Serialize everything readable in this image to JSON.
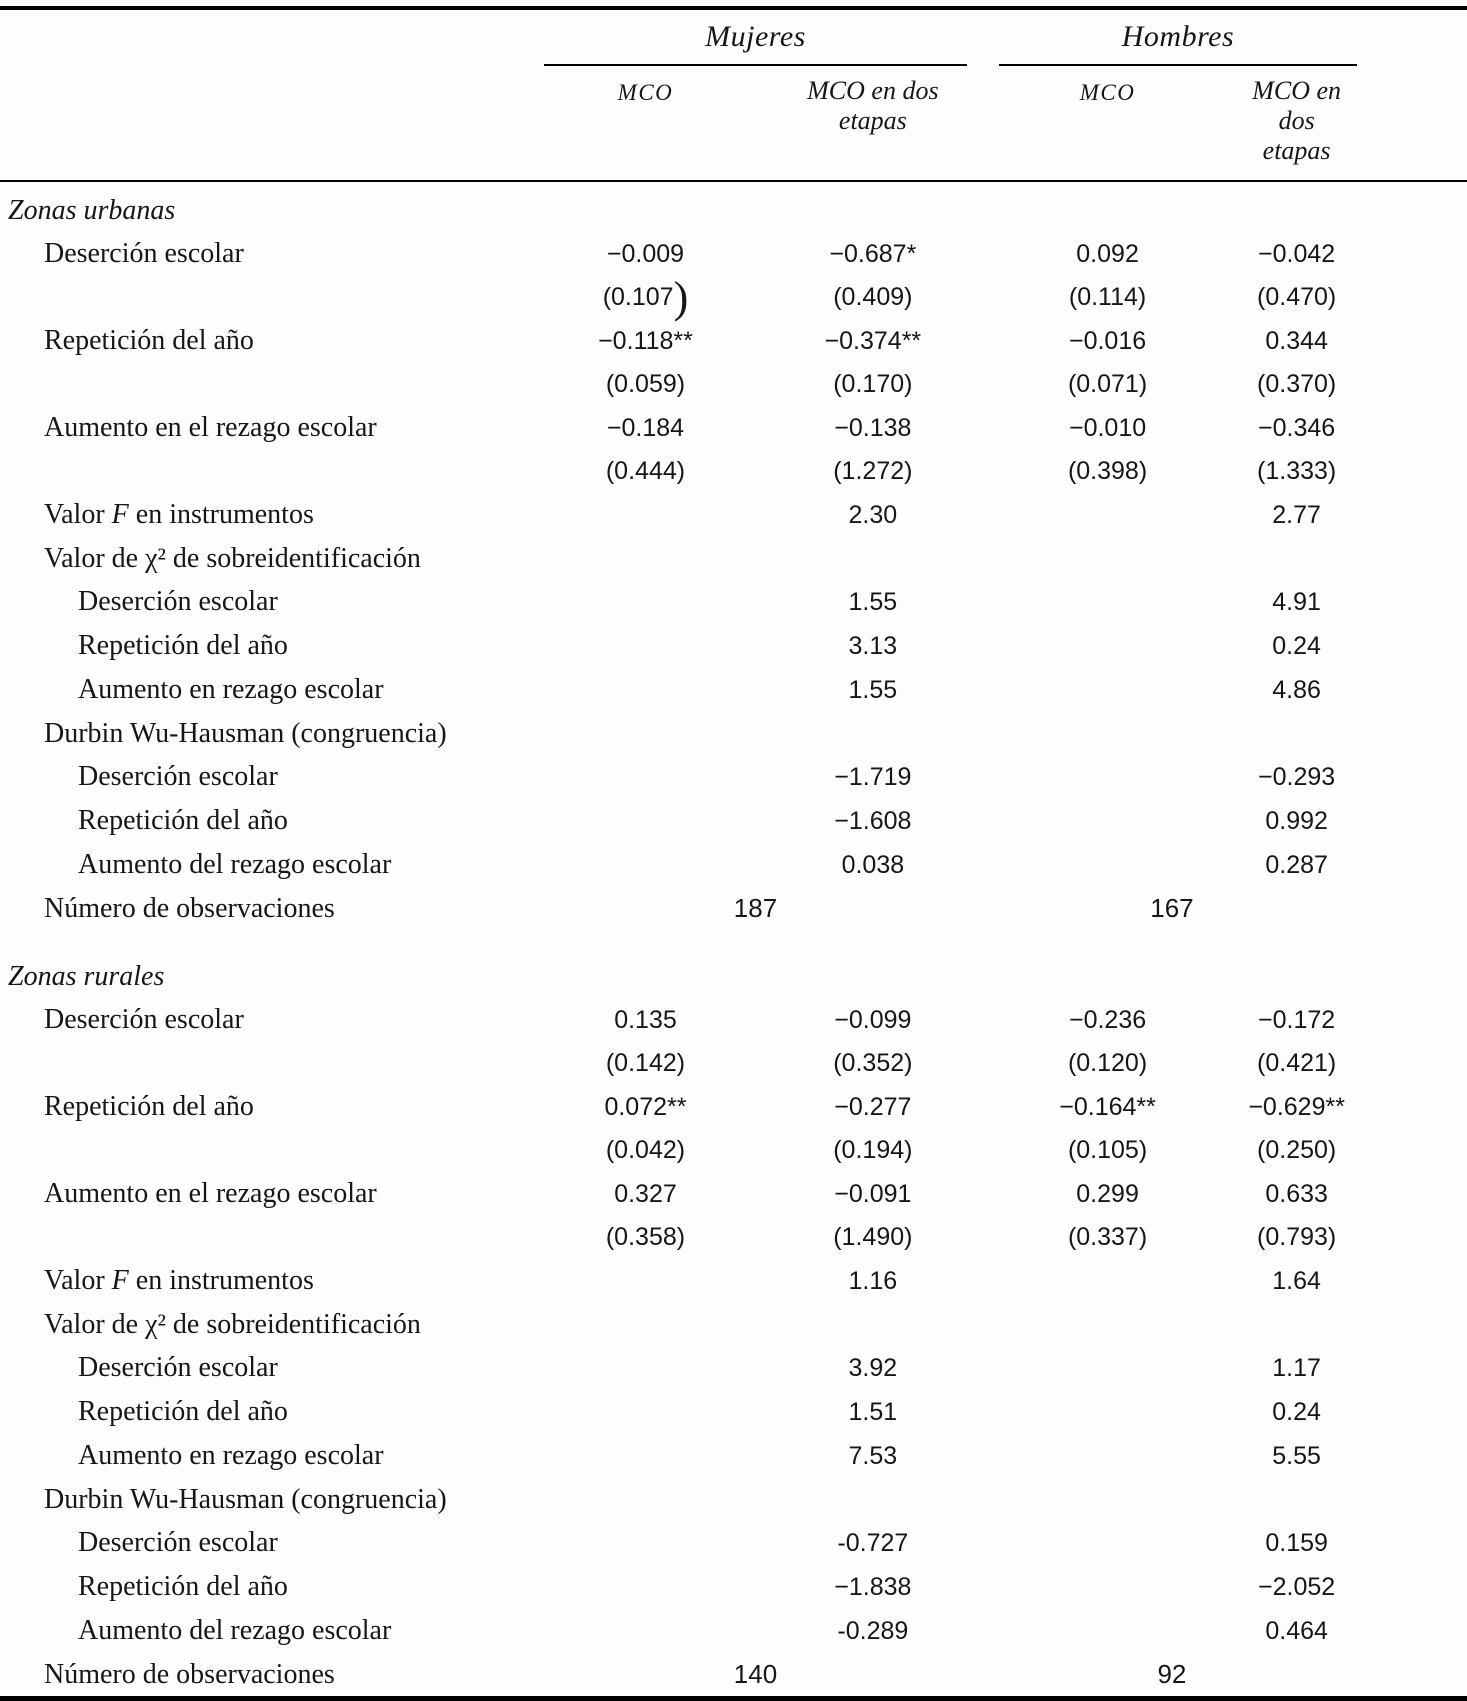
{
  "table": {
    "col_groups": [
      {
        "label": "Mujeres"
      },
      {
        "label": "Hombres"
      }
    ],
    "col_headers": [
      "MCO",
      "MCO en dos\netapas",
      "MCO",
      "MCO en dos\netapas"
    ],
    "sections": [
      {
        "title": "Zonas urbanas",
        "rows": [
          {
            "label": "Deserción escolar",
            "indent": 1,
            "cells": [
              "−0.009",
              "−0.687*",
              "0.092",
              "−0.042"
            ]
          },
          {
            "label": "",
            "indent": 1,
            "se": true,
            "cells": [
              {
                "text": "(0.107",
                "big_paren": ")"
              },
              "(0.409)",
              "(0.114)",
              "(0.470)"
            ]
          },
          {
            "label": "Repetición del año",
            "indent": 1,
            "cells": [
              "−0.118**",
              "−0.374**",
              "−0.016",
              "0.344"
            ]
          },
          {
            "label": "",
            "indent": 1,
            "se": true,
            "cells": [
              "(0.059)",
              "(0.170)",
              "(0.071)",
              "(0.370)"
            ]
          },
          {
            "label": "Aumento en el rezago escolar",
            "indent": 1,
            "cells": [
              "−0.184",
              "−0.138",
              "−0.010",
              "−0.346"
            ]
          },
          {
            "label": "",
            "indent": 1,
            "se": true,
            "cells": [
              "(0.444)",
              "(1.272)",
              "(0.398)",
              "(1.333)"
            ]
          },
          {
            "label": "Valor _F_ en instrumentos",
            "indent": 1,
            "cells": [
              "",
              "2.30",
              "",
              "2.77"
            ]
          },
          {
            "label": "Valor de χ² de sobreidentificación",
            "indent": 1,
            "cells": [
              "",
              "",
              "",
              ""
            ]
          },
          {
            "label": "Deserción escolar",
            "indent": 2,
            "cells": [
              "",
              "1.55",
              "",
              "4.91"
            ]
          },
          {
            "label": "Repetición del año",
            "indent": 2,
            "cells": [
              "",
              "3.13",
              "",
              "0.24"
            ]
          },
          {
            "label": "Aumento en rezago escolar",
            "indent": 2,
            "cells": [
              "",
              "1.55",
              "",
              "4.86"
            ]
          },
          {
            "label": "Durbin Wu-Hausman (congruencia)",
            "indent": 1,
            "cells": [
              "",
              "",
              "",
              ""
            ]
          },
          {
            "label": "Deserción escolar",
            "indent": 2,
            "cells": [
              "",
              "−1.719",
              "",
              "−0.293"
            ]
          },
          {
            "label": "Repetición del año",
            "indent": 2,
            "cells": [
              "",
              "−1.608",
              "",
              "0.992"
            ]
          },
          {
            "label": "Aumento del rezago escolar",
            "indent": 2,
            "cells": [
              "",
              "0.038",
              "",
              "0.287"
            ]
          },
          {
            "label": "Número de observaciones",
            "indent": 1,
            "obs": true,
            "cells": [
              "187",
              "167"
            ]
          }
        ]
      },
      {
        "title": "Zonas rurales",
        "rows": [
          {
            "label": "Deserción escolar",
            "indent": 1,
            "cells": [
              "0.135",
              "−0.099",
              "−0.236",
              "−0.172"
            ]
          },
          {
            "label": "",
            "indent": 1,
            "se": true,
            "cells": [
              "(0.142)",
              "(0.352)",
              "(0.120)",
              "(0.421)"
            ]
          },
          {
            "label": "Repetición del año",
            "indent": 1,
            "cells": [
              "0.072**",
              "−0.277",
              "−0.164**",
              "−0.629**"
            ]
          },
          {
            "label": "",
            "indent": 1,
            "se": true,
            "cells": [
              "(0.042)",
              "(0.194)",
              "(0.105)",
              "(0.250)"
            ]
          },
          {
            "label": "Aumento en el rezago escolar",
            "indent": 1,
            "cells": [
              "0.327",
              "−0.091",
              "0.299",
              "0.633"
            ]
          },
          {
            "label": "",
            "indent": 1,
            "se": true,
            "cells": [
              "(0.358)",
              "(1.490)",
              "(0.337)",
              "(0.793)"
            ]
          },
          {
            "label": "Valor _F_ en instrumentos",
            "indent": 1,
            "cells": [
              "",
              "1.16",
              "",
              "1.64"
            ]
          },
          {
            "label": "Valor de χ² de sobreidentificación",
            "indent": 1,
            "cells": [
              "",
              "",
              "",
              ""
            ]
          },
          {
            "label": "Deserción escolar",
            "indent": 2,
            "cells": [
              "",
              "3.92",
              "",
              "1.17"
            ]
          },
          {
            "label": "Repetición del año",
            "indent": 2,
            "cells": [
              "",
              "1.51",
              "",
              "0.24"
            ]
          },
          {
            "label": "Aumento en rezago escolar",
            "indent": 2,
            "cells": [
              "",
              "7.53",
              "",
              "5.55"
            ]
          },
          {
            "label": "Durbin Wu-Hausman (congruencia)",
            "indent": 1,
            "cells": [
              "",
              "",
              "",
              ""
            ]
          },
          {
            "label": "Deserción escolar",
            "indent": 2,
            "cells": [
              "",
              "-0.727",
              "",
              "0.159"
            ]
          },
          {
            "label": "Repetición del año",
            "indent": 2,
            "cells": [
              "",
              "−1.838",
              "",
              "−2.052"
            ]
          },
          {
            "label": "Aumento del rezago escolar",
            "indent": 2,
            "cells": [
              "",
              "-0.289",
              "",
              "0.464"
            ]
          },
          {
            "label": "Número de observaciones",
            "indent": 1,
            "obs": true,
            "cells": [
              "140",
              "92"
            ]
          }
        ]
      }
    ]
  }
}
